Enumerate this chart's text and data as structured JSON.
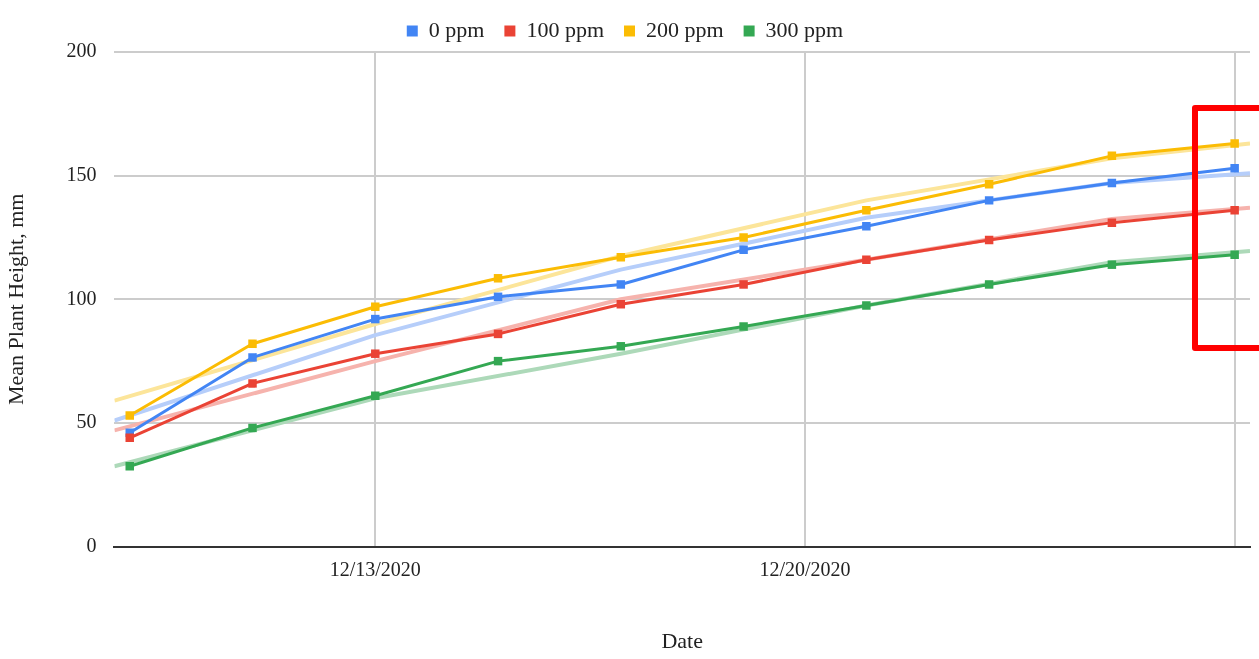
{
  "chart_data": {
    "type": "line",
    "xlabel": "Date",
    "ylabel": "Mean Plant Height, mm",
    "x": [
      "2020-12-09",
      "2020-12-11",
      "2020-12-13",
      "2020-12-15",
      "2020-12-17",
      "2020-12-19",
      "2020-12-21",
      "2020-12-23",
      "2020-12-25",
      "2020-12-27"
    ],
    "xlim": [
      "2020-12-08T18:00",
      "2020-12-27T06:00"
    ],
    "xticks": [
      {
        "value": "2020-12-13",
        "label": "12/13/2020"
      },
      {
        "value": "2020-12-20",
        "label": "12/20/2020"
      },
      {
        "value": "2020-12-27",
        "label": null
      }
    ],
    "ylim": [
      0,
      200
    ],
    "yticks": [
      0,
      50,
      100,
      150,
      200
    ],
    "grid": true,
    "legend": "top",
    "marker": "square",
    "line_style": "solid",
    "series": [
      {
        "name": "0 ppm",
        "color": "#4285f4",
        "values": [
          46,
          76.5,
          92,
          101,
          106,
          120,
          129.5,
          140,
          147,
          153
        ]
      },
      {
        "name": "100 ppm",
        "color": "#ea4335",
        "values": [
          44,
          66,
          78,
          86,
          98,
          106,
          116,
          124,
          131,
          136
        ]
      },
      {
        "name": "200 ppm",
        "color": "#fbbc04",
        "values": [
          53,
          82,
          97,
          108.5,
          117,
          125,
          136,
          146.5,
          158,
          163
        ]
      },
      {
        "name": "300 ppm",
        "color": "#34a853",
        "values": [
          32.5,
          48,
          61,
          75,
          81,
          89,
          97.5,
          106,
          114,
          118
        ]
      },
      {
        "type": "line",
        "marker": "none",
        "color": "#b6cefa",
        "x": [
          "2020-12-08T18:00",
          "2020-12-13",
          "2020-12-17",
          "2020-12-21",
          "2020-12-25",
          "2020-12-27T06:00"
        ],
        "values": [
          51,
          85.5,
          112,
          133,
          147,
          151
        ]
      },
      {
        "type": "line",
        "marker": "none",
        "color": "#f6b3ad",
        "x": [
          "2020-12-08T18:00",
          "2020-12-13",
          "2020-12-17",
          "2020-12-21",
          "2020-12-25",
          "2020-12-27T06:00"
        ],
        "values": [
          47,
          75,
          100,
          116,
          132.5,
          137
        ]
      },
      {
        "type": "line",
        "marker": "none",
        "color": "#fce59a",
        "x": [
          "2020-12-08T18:00",
          "2020-12-13",
          "2020-12-17",
          "2020-12-21",
          "2020-12-25",
          "2020-12-27T06:00"
        ],
        "values": [
          59,
          90,
          117.5,
          140,
          157,
          163
        ]
      },
      {
        "type": "line",
        "marker": "none",
        "color": "#add9b9",
        "x": [
          "2020-12-08T18:00",
          "2020-12-13",
          "2020-12-17",
          "2020-12-21",
          "2020-12-25",
          "2020-12-27T06:00"
        ],
        "values": [
          32.5,
          60,
          78,
          97.5,
          115,
          119.5
        ]
      }
    ]
  }
}
